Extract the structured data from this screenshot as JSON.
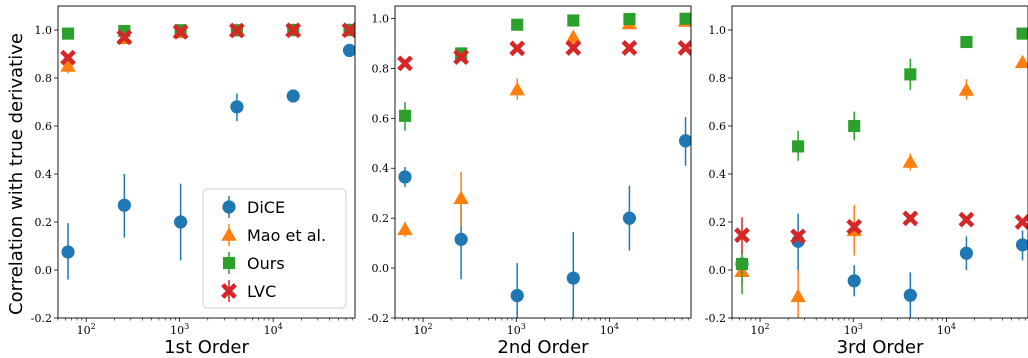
{
  "figure": {
    "ylabel": "Correlation with true derivative",
    "legend": {
      "placement": "lower-right of first panel",
      "entries": [
        {
          "name": "DiCE",
          "marker": "circle",
          "color": "#1f77b4"
        },
        {
          "name": "Mao et al.",
          "marker": "triangle",
          "color": "#ff7f0e"
        },
        {
          "name": "Ours",
          "marker": "square",
          "color": "#2ca02c"
        },
        {
          "name": "LVC",
          "marker": "x",
          "color": "#d62728"
        }
      ]
    }
  },
  "chart_data": [
    {
      "type": "scatter",
      "xlabel": "1st Order",
      "xscale": "log",
      "xlim": [
        50,
        75000
      ],
      "ylim": [
        -0.2,
        1.1
      ],
      "xticks": [
        {
          "v": 100,
          "b": "10",
          "e": "2"
        },
        {
          "v": 1000,
          "b": "10",
          "e": "3"
        },
        {
          "v": 10000,
          "b": "10",
          "e": "4"
        }
      ],
      "yticks": [
        "-0.2",
        "0.0",
        "0.2",
        "0.4",
        "0.6",
        "0.8",
        "1.0"
      ],
      "grid": false,
      "series": [
        {
          "name": "DiCE",
          "points": [
            {
              "x": 64,
              "y": 0.075,
              "lo": -0.04,
              "hi": 0.195
            },
            {
              "x": 256,
              "y": 0.27,
              "lo": 0.135,
              "hi": 0.4
            },
            {
              "x": 1024,
              "y": 0.2,
              "lo": 0.04,
              "hi": 0.36
            },
            {
              "x": 4096,
              "y": 0.68,
              "lo": 0.62,
              "hi": 0.735
            },
            {
              "x": 16384,
              "y": 0.725,
              "lo": 0.7,
              "hi": 0.75
            },
            {
              "x": 65536,
              "y": 0.915,
              "lo": 0.9,
              "hi": 0.93
            }
          ]
        },
        {
          "name": "Mao et al.",
          "points": [
            {
              "x": 64,
              "y": 0.85,
              "lo": 0.82,
              "hi": 0.88
            },
            {
              "x": 256,
              "y": 0.965,
              "lo": 0.95,
              "hi": 0.98
            },
            {
              "x": 1024,
              "y": 0.99,
              "lo": 0.98,
              "hi": 1.0
            },
            {
              "x": 4096,
              "y": 0.997,
              "lo": 0.99,
              "hi": 1.0
            },
            {
              "x": 16384,
              "y": 0.998,
              "lo": 0.99,
              "hi": 1.0
            },
            {
              "x": 65536,
              "y": 0.998,
              "lo": 0.99,
              "hi": 1.0
            }
          ]
        },
        {
          "name": "Ours",
          "points": [
            {
              "x": 64,
              "y": 0.985,
              "lo": 0.98,
              "hi": 0.99
            },
            {
              "x": 256,
              "y": 0.996,
              "lo": 0.99,
              "hi": 1.0
            },
            {
              "x": 1024,
              "y": 0.999,
              "lo": 0.995,
              "hi": 1.0
            },
            {
              "x": 4096,
              "y": 0.999,
              "lo": 0.995,
              "hi": 1.0
            },
            {
              "x": 16384,
              "y": 1.0,
              "lo": 1.0,
              "hi": 1.0
            },
            {
              "x": 65536,
              "y": 1.0,
              "lo": 1.0,
              "hi": 1.0
            }
          ]
        },
        {
          "name": "LVC",
          "points": [
            {
              "x": 64,
              "y": 0.885,
              "lo": 0.875,
              "hi": 0.895
            },
            {
              "x": 256,
              "y": 0.97,
              "lo": 0.96,
              "hi": 0.98
            },
            {
              "x": 1024,
              "y": 0.992,
              "lo": 0.985,
              "hi": 1.0
            },
            {
              "x": 4096,
              "y": 0.998,
              "lo": 0.99,
              "hi": 1.0
            },
            {
              "x": 16384,
              "y": 0.999,
              "lo": 0.995,
              "hi": 1.0
            },
            {
              "x": 65536,
              "y": 0.999,
              "lo": 0.995,
              "hi": 1.0
            }
          ]
        }
      ]
    },
    {
      "type": "scatter",
      "xlabel": "2nd Order",
      "xscale": "log",
      "xlim": [
        50,
        75000
      ],
      "ylim": [
        -0.2,
        1.05
      ],
      "xticks": [
        {
          "v": 100,
          "b": "10",
          "e": "2"
        },
        {
          "v": 1000,
          "b": "10",
          "e": "3"
        },
        {
          "v": 10000,
          "b": "10",
          "e": "4"
        }
      ],
      "yticks": [
        "-0.2",
        "0.0",
        "0.2",
        "0.4",
        "0.6",
        "0.8",
        "1.0"
      ],
      "grid": false,
      "series": [
        {
          "name": "DiCE",
          "points": [
            {
              "x": 64,
              "y": 0.365,
              "lo": 0.325,
              "hi": 0.405
            },
            {
              "x": 256,
              "y": 0.115,
              "lo": -0.045,
              "hi": 0.27
            },
            {
              "x": 1024,
              "y": -0.11,
              "lo": -0.24,
              "hi": 0.02
            },
            {
              "x": 4096,
              "y": -0.04,
              "lo": -0.23,
              "hi": 0.145
            },
            {
              "x": 16384,
              "y": 0.2,
              "lo": 0.07,
              "hi": 0.33
            },
            {
              "x": 65536,
              "y": 0.51,
              "lo": 0.41,
              "hi": 0.605
            }
          ]
        },
        {
          "name": "Mao et al.",
          "points": [
            {
              "x": 64,
              "y": 0.155,
              "lo": 0.125,
              "hi": 0.185
            },
            {
              "x": 256,
              "y": 0.28,
              "lo": 0.17,
              "hi": 0.385
            },
            {
              "x": 1024,
              "y": 0.715,
              "lo": 0.675,
              "hi": 0.76
            },
            {
              "x": 4096,
              "y": 0.925,
              "lo": 0.895,
              "hi": 0.945
            },
            {
              "x": 16384,
              "y": 0.98,
              "lo": 0.97,
              "hi": 0.99
            },
            {
              "x": 65536,
              "y": 0.99,
              "lo": 0.98,
              "hi": 1.0
            }
          ]
        },
        {
          "name": "Ours",
          "points": [
            {
              "x": 64,
              "y": 0.61,
              "lo": 0.55,
              "hi": 0.665
            },
            {
              "x": 256,
              "y": 0.86,
              "lo": 0.845,
              "hi": 0.875
            },
            {
              "x": 1024,
              "y": 0.975,
              "lo": 0.965,
              "hi": 0.985
            },
            {
              "x": 4096,
              "y": 0.992,
              "lo": 0.985,
              "hi": 0.998
            },
            {
              "x": 16384,
              "y": 0.998,
              "lo": 0.99,
              "hi": 1.0
            },
            {
              "x": 65536,
              "y": 0.999,
              "lo": 0.99,
              "hi": 1.0
            }
          ]
        },
        {
          "name": "LVC",
          "points": [
            {
              "x": 64,
              "y": 0.82,
              "lo": 0.805,
              "hi": 0.835
            },
            {
              "x": 256,
              "y": 0.845,
              "lo": 0.83,
              "hi": 0.86
            },
            {
              "x": 1024,
              "y": 0.88,
              "lo": 0.875,
              "hi": 0.885
            },
            {
              "x": 4096,
              "y": 0.882,
              "lo": 0.878,
              "hi": 0.886
            },
            {
              "x": 16384,
              "y": 0.882,
              "lo": 0.878,
              "hi": 0.886
            },
            {
              "x": 65536,
              "y": 0.882,
              "lo": 0.878,
              "hi": 0.886
            }
          ]
        }
      ]
    },
    {
      "type": "scatter",
      "xlabel": "3rd Order",
      "xscale": "log",
      "xlim": [
        50,
        75000
      ],
      "ylim": [
        -0.2,
        1.1
      ],
      "xticks": [
        {
          "v": 100,
          "b": "10",
          "e": "2"
        },
        {
          "v": 1000,
          "b": "10",
          "e": "3"
        },
        {
          "v": 10000,
          "b": "10",
          "e": "4"
        }
      ],
      "yticks": [
        "-0.2",
        "0.0",
        "0.2",
        "0.4",
        "0.6",
        "0.8",
        "1.0"
      ],
      "grid": false,
      "series": [
        {
          "name": "DiCE",
          "points": [
            {
              "x": 64,
              "y": 0.025,
              "lo": 0.0,
              "hi": 0.05
            },
            {
              "x": 256,
              "y": 0.12,
              "lo": 0.0,
              "hi": 0.235
            },
            {
              "x": 1024,
              "y": -0.045,
              "lo": -0.11,
              "hi": 0.02
            },
            {
              "x": 4096,
              "y": -0.105,
              "lo": -0.2,
              "hi": -0.01
            },
            {
              "x": 16384,
              "y": 0.07,
              "lo": 0.0,
              "hi": 0.14
            },
            {
              "x": 65536,
              "y": 0.105,
              "lo": 0.04,
              "hi": 0.165
            }
          ]
        },
        {
          "name": "Mao et al.",
          "points": [
            {
              "x": 64,
              "y": -0.005,
              "lo": -0.06,
              "hi": 0.05
            },
            {
              "x": 256,
              "y": -0.11,
              "lo": -0.22,
              "hi": 0.0
            },
            {
              "x": 1024,
              "y": 0.165,
              "lo": 0.06,
              "hi": 0.27
            },
            {
              "x": 4096,
              "y": 0.45,
              "lo": 0.415,
              "hi": 0.485
            },
            {
              "x": 16384,
              "y": 0.75,
              "lo": 0.71,
              "hi": 0.795
            },
            {
              "x": 65536,
              "y": 0.865,
              "lo": 0.85,
              "hi": 0.88
            }
          ]
        },
        {
          "name": "Ours",
          "points": [
            {
              "x": 64,
              "y": 0.025,
              "lo": -0.1,
              "hi": 0.08
            },
            {
              "x": 256,
              "y": 0.515,
              "lo": 0.455,
              "hi": 0.58
            },
            {
              "x": 1024,
              "y": 0.6,
              "lo": 0.54,
              "hi": 0.66
            },
            {
              "x": 4096,
              "y": 0.815,
              "lo": 0.75,
              "hi": 0.88
            },
            {
              "x": 16384,
              "y": 0.95,
              "lo": 0.935,
              "hi": 0.965
            },
            {
              "x": 65536,
              "y": 0.985,
              "lo": 0.975,
              "hi": 0.995
            }
          ]
        },
        {
          "name": "LVC",
          "points": [
            {
              "x": 64,
              "y": 0.145,
              "lo": 0.07,
              "hi": 0.22
            },
            {
              "x": 256,
              "y": 0.14,
              "lo": 0.12,
              "hi": 0.16
            },
            {
              "x": 1024,
              "y": 0.18,
              "lo": 0.16,
              "hi": 0.2
            },
            {
              "x": 4096,
              "y": 0.215,
              "lo": 0.205,
              "hi": 0.225
            },
            {
              "x": 16384,
              "y": 0.21,
              "lo": 0.2,
              "hi": 0.22
            },
            {
              "x": 65536,
              "y": 0.2,
              "lo": 0.19,
              "hi": 0.21
            }
          ]
        }
      ]
    }
  ]
}
